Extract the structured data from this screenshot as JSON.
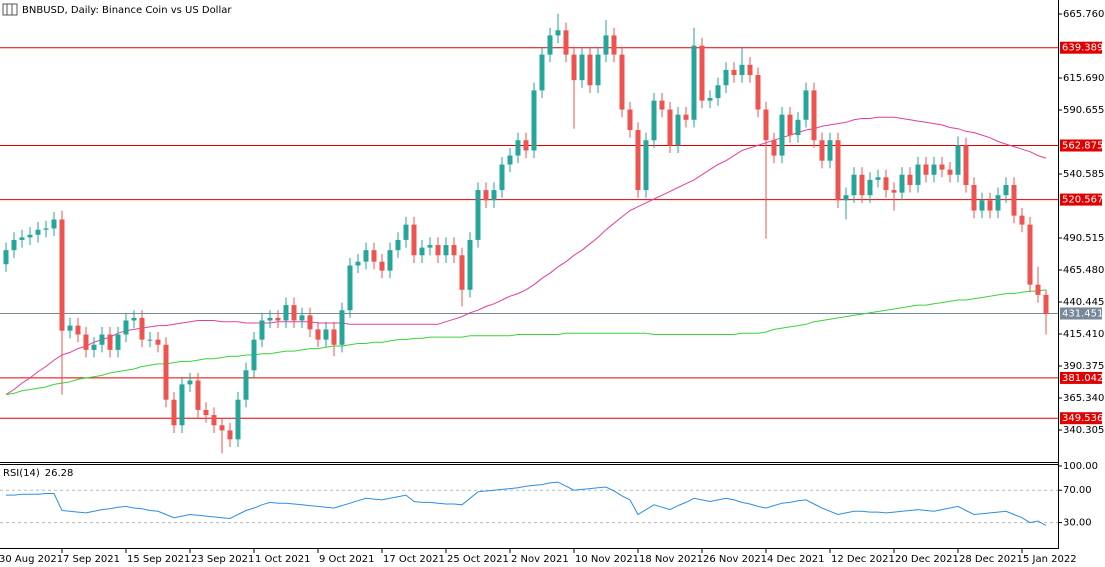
{
  "header": {
    "title": "BNBUSD, Daily:  Binance Coin vs US Dollar"
  },
  "chart_data": [
    {
      "type": "candlestick",
      "up_color": "#26a69a",
      "down_color": "#ef5350",
      "open": [
        470,
        481,
        489,
        491,
        493,
        497,
        498,
        505,
        418,
        422,
        415,
        403,
        407,
        415,
        403,
        415,
        426,
        428,
        411,
        411,
        407,
        364,
        344,
        376,
        379,
        356,
        352,
        344,
        340,
        333,
        364,
        387,
        411,
        426,
        428,
        426,
        438,
        426,
        430,
        419,
        411,
        419,
        407,
        434,
        469,
        472,
        481,
        472,
        465,
        481,
        489,
        501,
        477,
        483,
        485,
        477,
        485,
        477,
        450,
        489,
        528,
        520,
        528,
        548,
        555,
        567,
        559,
        606,
        634,
        649,
        653,
        634,
        614,
        634,
        610,
        634,
        649,
        634,
        591,
        575,
        528,
        567,
        598,
        591,
        563,
        587,
        583,
        641,
        598,
        600,
        610,
        622,
        618,
        626,
        618,
        591,
        567,
        555,
        587,
        571,
        583,
        606,
        567,
        551,
        567,
        520,
        524,
        540,
        524,
        536,
        538,
        528,
        526,
        540,
        532,
        548,
        540,
        548,
        544,
        540,
        563,
        532,
        512,
        520,
        512,
        524,
        532,
        508,
        501,
        454,
        446
      ],
      "high": [
        487,
        495,
        497,
        499,
        503,
        504,
        511,
        512,
        428,
        428,
        421,
        413,
        421,
        421,
        421,
        432,
        434,
        434,
        417,
        417,
        413,
        370,
        382,
        385,
        385,
        362,
        358,
        350,
        346,
        370,
        393,
        417,
        432,
        434,
        434,
        444,
        444,
        436,
        436,
        425,
        425,
        425,
        440,
        475,
        478,
        487,
        487,
        478,
        487,
        495,
        507,
        507,
        489,
        491,
        491,
        491,
        491,
        483,
        495,
        534,
        534,
        534,
        554,
        561,
        573,
        573,
        612,
        640,
        655,
        666,
        659,
        640,
        640,
        640,
        640,
        661,
        655,
        640,
        597,
        581,
        573,
        604,
        604,
        597,
        593,
        593,
        655,
        647,
        606,
        616,
        628,
        628,
        640,
        632,
        624,
        597,
        573,
        593,
        593,
        589,
        612,
        612,
        573,
        573,
        573,
        530,
        546,
        546,
        542,
        544,
        544,
        534,
        546,
        546,
        554,
        554,
        554,
        554,
        550,
        570,
        569,
        538,
        526,
        526,
        530,
        538,
        538,
        514,
        507,
        468,
        450
      ],
      "low": [
        464,
        475,
        483,
        485,
        487,
        491,
        492,
        368,
        412,
        409,
        397,
        397,
        401,
        397,
        397,
        409,
        420,
        405,
        405,
        401,
        358,
        338,
        338,
        370,
        350,
        346,
        338,
        322,
        327,
        327,
        358,
        381,
        405,
        420,
        420,
        420,
        420,
        420,
        413,
        405,
        405,
        398,
        401,
        428,
        463,
        466,
        466,
        459,
        459,
        475,
        483,
        471,
        471,
        477,
        471,
        471,
        471,
        437,
        444,
        483,
        514,
        514,
        522,
        542,
        549,
        553,
        553,
        600,
        628,
        643,
        628,
        576,
        608,
        604,
        604,
        628,
        628,
        585,
        569,
        522,
        522,
        561,
        585,
        557,
        557,
        577,
        577,
        592,
        592,
        594,
        604,
        612,
        612,
        612,
        585,
        490,
        549,
        549,
        565,
        565,
        577,
        561,
        545,
        545,
        514,
        505,
        518,
        518,
        518,
        530,
        522,
        512,
        520,
        526,
        526,
        534,
        534,
        538,
        534,
        534,
        526,
        506,
        506,
        506,
        506,
        518,
        502,
        495,
        448,
        440,
        415
      ],
      "close": [
        481,
        489,
        491,
        493,
        497,
        498,
        505,
        418,
        422,
        415,
        403,
        407,
        415,
        403,
        415,
        426,
        428,
        411,
        411,
        407,
        364,
        344,
        376,
        379,
        356,
        352,
        344,
        340,
        333,
        364,
        387,
        411,
        426,
        428,
        426,
        438,
        426,
        430,
        419,
        411,
        419,
        407,
        434,
        469,
        472,
        481,
        472,
        465,
        481,
        489,
        501,
        477,
        483,
        485,
        477,
        485,
        477,
        450,
        489,
        528,
        520,
        528,
        548,
        555,
        567,
        559,
        606,
        634,
        649,
        653,
        634,
        614,
        634,
        610,
        634,
        649,
        634,
        591,
        575,
        528,
        567,
        598,
        591,
        563,
        587,
        583,
        641,
        598,
        600,
        610,
        622,
        618,
        626,
        618,
        591,
        567,
        555,
        587,
        571,
        583,
        606,
        567,
        551,
        567,
        520,
        524,
        540,
        524,
        536,
        538,
        528,
        526,
        540,
        532,
        548,
        540,
        548,
        544,
        540,
        563,
        532,
        512,
        520,
        512,
        524,
        532,
        508,
        501,
        454,
        446,
        431
      ],
      "lines": [
        {
          "color": "#e0409c",
          "values": [
            368,
            372,
            377,
            381,
            386,
            390,
            395,
            399,
            401,
            404,
            406,
            409,
            411,
            413,
            416,
            418,
            419,
            420,
            421,
            422,
            422,
            423,
            424,
            425,
            426,
            426,
            426,
            425,
            425,
            425,
            424,
            424,
            424,
            424,
            425,
            425,
            425,
            425,
            425,
            424,
            424,
            424,
            424,
            423,
            423,
            423,
            423,
            423,
            423,
            423,
            423,
            423,
            423,
            423,
            423,
            425,
            427,
            429,
            432,
            434,
            437,
            439,
            442,
            445,
            447,
            450,
            454,
            459,
            463,
            468,
            472,
            477,
            481,
            486,
            491,
            497,
            502,
            507,
            512,
            515,
            518,
            521,
            524,
            527,
            530,
            533,
            536,
            540,
            544,
            548,
            551,
            555,
            559,
            561,
            563,
            565,
            567,
            569,
            571,
            573,
            575,
            576,
            578,
            579,
            580,
            581,
            583,
            584,
            584,
            585,
            585,
            585,
            584,
            583,
            582,
            581,
            580,
            579,
            577,
            576,
            574,
            573,
            571,
            569,
            566,
            564,
            562,
            560,
            558,
            555,
            553
          ]
        },
        {
          "color": "#3cd23c",
          "values": [
            368,
            369,
            371,
            372,
            373,
            374,
            376,
            377,
            378,
            380,
            381,
            382,
            383,
            385,
            386,
            387,
            388,
            390,
            391,
            392,
            392,
            393,
            394,
            394,
            395,
            396,
            396,
            397,
            398,
            398,
            399,
            399,
            400,
            400,
            401,
            402,
            402,
            403,
            404,
            404,
            405,
            406,
            406,
            407,
            408,
            408,
            409,
            409,
            410,
            411,
            411,
            412,
            412,
            413,
            413,
            413,
            413,
            413,
            414,
            414,
            414,
            414,
            414,
            414,
            415,
            415,
            415,
            415,
            415,
            415,
            416,
            416,
            416,
            416,
            416,
            416,
            416,
            416,
            416,
            416,
            416,
            415,
            415,
            415,
            415,
            415,
            415,
            415,
            415,
            415,
            415,
            415,
            416,
            416,
            416,
            417,
            419,
            420,
            421,
            422,
            423,
            425,
            426,
            427,
            428,
            429,
            430,
            431,
            432,
            433,
            434,
            435,
            436,
            437,
            438,
            438,
            439,
            440,
            441,
            442,
            442,
            443,
            444,
            445,
            446,
            447,
            447,
            448,
            449,
            449,
            450
          ]
        }
      ],
      "levels": [
        639.389,
        562.875,
        520.567,
        381.042,
        349.536
      ],
      "level_color": "#e00000",
      "last_price": 431.451,
      "ylim": [
        315.27,
        676.71
      ],
      "yticks": [
        {
          "value": 665.76,
          "label": "665.760"
        },
        {
          "value": 615.69,
          "label": "615.690"
        },
        {
          "value": 590.655,
          "label": "590.655"
        },
        {
          "value": 540.585,
          "label": "540.585"
        },
        {
          "value": 490.515,
          "label": "490.515"
        },
        {
          "value": 465.48,
          "label": "465.480"
        },
        {
          "value": 440.445,
          "label": "440.445"
        },
        {
          "value": 415.41,
          "label": "415.410"
        },
        {
          "value": 390.375,
          "label": "390.375"
        },
        {
          "value": 365.34,
          "label": "365.340"
        },
        {
          "value": 340.305,
          "label": "340.305"
        }
      ],
      "x_labels": [
        "30 Aug 2021",
        "7 Sep 2021",
        "15 Sep 2021",
        "23 Sep 2021",
        "1 Oct 2021",
        "9 Oct 2021",
        "17 Oct 2021",
        "25 Oct 2021",
        "2 Nov 2021",
        "10 Nov 2021",
        "18 Nov 2021",
        "26 Nov 2021",
        "4 Dec 2021",
        "12 Dec 2021",
        "20 Dec 2021",
        "28 Dec 2021",
        "5 Jan 2022"
      ]
    },
    {
      "type": "line",
      "title": "RSI(14)",
      "color": "#2f8fe0",
      "values": [
        64,
        64,
        65,
        65,
        65,
        66,
        66,
        45,
        44,
        43,
        42,
        44,
        46,
        47,
        49,
        50,
        48,
        47,
        45,
        44,
        40,
        36,
        38,
        40,
        39,
        38,
        37,
        36,
        35,
        40,
        45,
        48,
        52,
        55,
        54,
        54,
        53,
        52,
        51,
        50,
        49,
        48,
        51,
        54,
        57,
        60,
        59,
        58,
        60,
        62,
        64,
        56,
        55,
        55,
        54,
        53,
        53,
        52,
        60,
        68,
        69,
        70,
        71,
        72,
        73,
        75,
        76,
        77,
        79,
        80,
        75,
        70,
        71,
        72,
        73,
        74,
        69,
        63,
        58,
        40,
        46,
        52,
        49,
        46,
        51,
        55,
        60,
        58,
        56,
        58,
        60,
        58,
        55,
        53,
        50,
        48,
        51,
        54,
        55,
        57,
        58,
        53,
        48,
        44,
        40,
        42,
        44,
        44,
        43,
        43,
        42,
        43,
        44,
        45,
        46,
        45,
        44,
        46,
        48,
        50,
        45,
        40,
        41,
        42,
        43,
        44,
        40,
        36,
        30,
        32,
        26.28
      ],
      "ylim": [
        -1.4,
        102.4
      ],
      "yticks": [
        {
          "value": 100,
          "label": "100.00"
        },
        {
          "value": 70,
          "label": "70.00"
        },
        {
          "value": 30,
          "label": "30.00"
        }
      ],
      "dashed_levels": [
        70,
        30
      ]
    }
  ]
}
